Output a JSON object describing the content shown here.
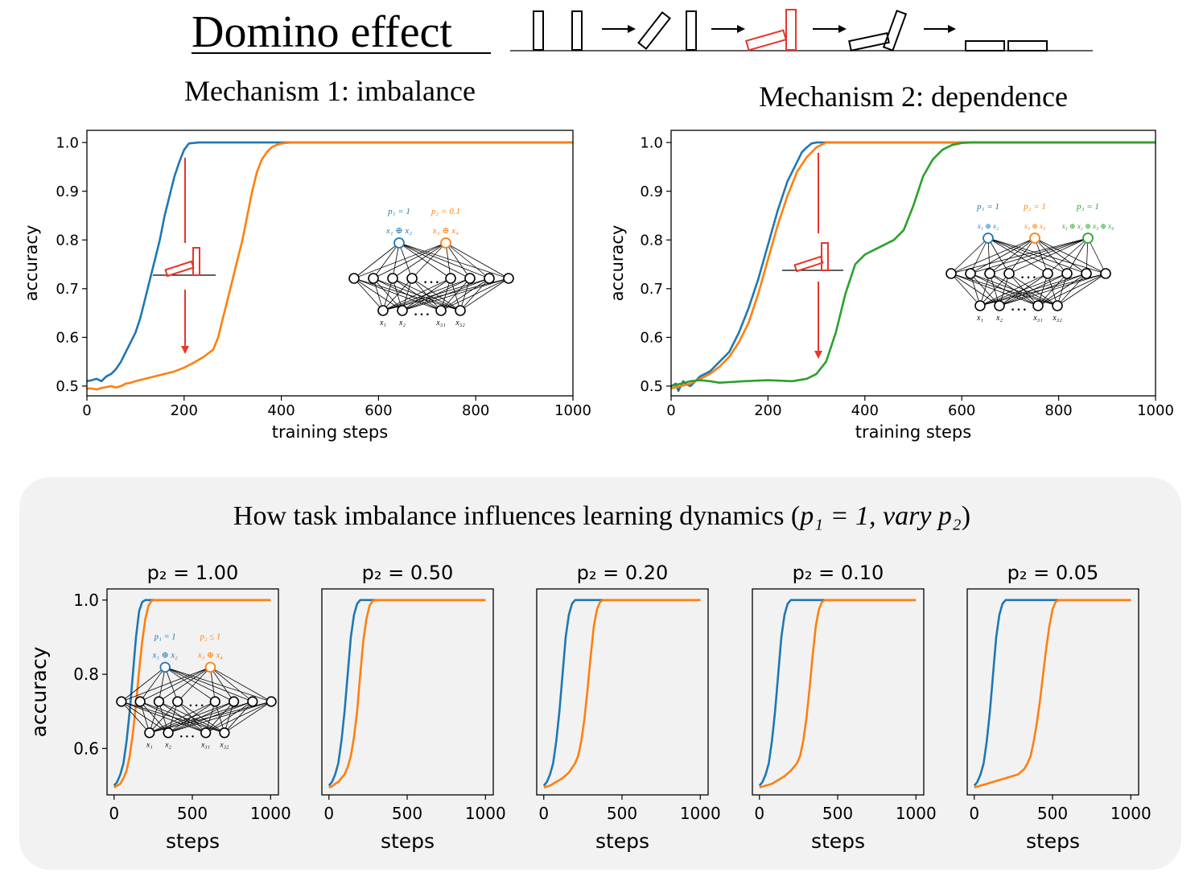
{
  "header": {
    "title": "Domino effect"
  },
  "section": {
    "title_prefix": "How task imbalance influences learning dynamics (",
    "title_math": "p₁ = 1,  vary p₂",
    "title_suffix": ")"
  },
  "colors": {
    "blue": "#1f77b4",
    "orange": "#ff7f0e",
    "green": "#2ca02c",
    "red": "#e8362a",
    "panel_bg": "#f2f2f2"
  },
  "chart_data": [
    {
      "type": "line",
      "title": "Mechanism 1: imbalance",
      "xlabel": "training steps",
      "ylabel": "accuracy",
      "xlim": [
        0,
        1000
      ],
      "ylim": [
        0.48,
        1.025
      ],
      "xticks": [
        "0",
        "200",
        "400",
        "600",
        "800",
        "1000"
      ],
      "yticks": [
        "0.5",
        "0.6",
        "0.7",
        "0.8",
        "0.9",
        "1.0"
      ],
      "series": [
        {
          "color": "#1f77b4",
          "x": [
            0,
            10,
            20,
            30,
            40,
            50,
            60,
            70,
            80,
            90,
            100,
            110,
            120,
            130,
            140,
            150,
            160,
            170,
            180,
            190,
            200,
            210,
            230,
            260,
            300,
            1000
          ],
          "y": [
            0.51,
            0.512,
            0.515,
            0.51,
            0.52,
            0.525,
            0.535,
            0.55,
            0.57,
            0.59,
            0.61,
            0.64,
            0.68,
            0.72,
            0.76,
            0.8,
            0.85,
            0.89,
            0.93,
            0.96,
            0.985,
            0.998,
            1.0,
            1.0,
            1.0,
            1.0
          ]
        },
        {
          "color": "#ff7f0e",
          "x": [
            0,
            10,
            20,
            30,
            40,
            50,
            60,
            70,
            80,
            90,
            100,
            120,
            140,
            160,
            180,
            200,
            220,
            240,
            260,
            270,
            280,
            290,
            300,
            310,
            320,
            330,
            340,
            350,
            360,
            370,
            380,
            390,
            400,
            420,
            440,
            1000
          ],
          "y": [
            0.495,
            0.495,
            0.493,
            0.496,
            0.498,
            0.5,
            0.497,
            0.5,
            0.505,
            0.507,
            0.51,
            0.515,
            0.52,
            0.525,
            0.53,
            0.538,
            0.548,
            0.56,
            0.575,
            0.6,
            0.64,
            0.68,
            0.72,
            0.76,
            0.8,
            0.85,
            0.9,
            0.94,
            0.965,
            0.98,
            0.99,
            0.995,
            0.998,
            1.0,
            1.0,
            1.0
          ]
        }
      ],
      "network": {
        "top_labels": [
          "p₁ = 1",
          "p₂ = 0.1"
        ],
        "out_labels": [
          "x₁ ⊕ x₂",
          "x₃ ⊕ x₄"
        ],
        "input_labels": [
          "x₁",
          "x₂",
          "x₃₁",
          "x₃₂"
        ]
      }
    },
    {
      "type": "line",
      "title": "Mechanism 2: dependence",
      "xlabel": "training steps",
      "ylabel": "accuracy",
      "xlim": [
        0,
        1000
      ],
      "ylim": [
        0.48,
        1.025
      ],
      "xticks": [
        "0",
        "200",
        "400",
        "600",
        "800",
        "1000"
      ],
      "yticks": [
        "0.5",
        "0.6",
        "0.7",
        "0.8",
        "0.9",
        "1.0"
      ],
      "series": [
        {
          "color": "#1f77b4",
          "x": [
            0,
            10,
            15,
            20,
            25,
            30,
            40,
            50,
            60,
            80,
            100,
            120,
            140,
            160,
            180,
            200,
            220,
            240,
            260,
            270,
            280,
            290,
            300,
            320,
            1000
          ],
          "y": [
            0.5,
            0.505,
            0.49,
            0.5,
            0.51,
            0.505,
            0.5,
            0.51,
            0.52,
            0.53,
            0.55,
            0.57,
            0.61,
            0.66,
            0.72,
            0.79,
            0.86,
            0.92,
            0.96,
            0.98,
            0.99,
            0.998,
            1.0,
            1.0,
            1.0
          ]
        },
        {
          "color": "#ff7f0e",
          "x": [
            0,
            20,
            40,
            60,
            80,
            100,
            120,
            140,
            160,
            180,
            200,
            220,
            240,
            260,
            280,
            300,
            320,
            340,
            1000
          ],
          "y": [
            0.495,
            0.5,
            0.505,
            0.515,
            0.525,
            0.54,
            0.56,
            0.59,
            0.63,
            0.69,
            0.76,
            0.83,
            0.89,
            0.94,
            0.97,
            0.99,
            1.0,
            1.0,
            1.0
          ]
        },
        {
          "color": "#2ca02c",
          "x": [
            0,
            20,
            40,
            60,
            80,
            100,
            150,
            200,
            250,
            280,
            300,
            320,
            340,
            360,
            380,
            400,
            420,
            440,
            460,
            480,
            500,
            520,
            540,
            560,
            580,
            600,
            620,
            1000
          ],
          "y": [
            0.5,
            0.505,
            0.51,
            0.512,
            0.51,
            0.507,
            0.51,
            0.512,
            0.51,
            0.515,
            0.525,
            0.55,
            0.61,
            0.69,
            0.75,
            0.77,
            0.78,
            0.79,
            0.8,
            0.82,
            0.87,
            0.93,
            0.965,
            0.985,
            0.995,
            0.999,
            1.0,
            1.0
          ]
        }
      ],
      "network": {
        "top_labels": [
          "p₁ = 1",
          "p₂ = 1",
          "p₃ = 1"
        ],
        "out_labels": [
          "x₁ ⊕ x₂",
          "x₃ ⊕ x₄",
          "x₁ ⊕ x₂ ⊕ x₃ ⊕ x₄"
        ],
        "input_labels": [
          "x₁",
          "x₂",
          "x₃₁",
          "x₃₂"
        ]
      }
    },
    {
      "type": "line",
      "title": "p₂ = 1.00",
      "xlabel": "steps",
      "ylabel": "accuracy",
      "xlim": [
        -45,
        1050
      ],
      "ylim": [
        0.475,
        1.03
      ],
      "xticks": [
        "0",
        "500",
        "1000"
      ],
      "yticks": [
        "0.6",
        "0.8",
        "1.0"
      ],
      "series": [
        {
          "color": "#1f77b4",
          "x": [
            0,
            20,
            40,
            60,
            80,
            100,
            120,
            140,
            160,
            180,
            200,
            1000
          ],
          "y": [
            0.5,
            0.51,
            0.53,
            0.56,
            0.62,
            0.7,
            0.8,
            0.9,
            0.97,
            0.995,
            1.0,
            1.0
          ]
        },
        {
          "color": "#ff7f0e",
          "x": [
            0,
            20,
            40,
            60,
            80,
            100,
            120,
            140,
            160,
            180,
            200,
            220,
            240,
            260,
            1000
          ],
          "y": [
            0.495,
            0.5,
            0.505,
            0.52,
            0.54,
            0.58,
            0.64,
            0.72,
            0.81,
            0.89,
            0.95,
            0.985,
            0.998,
            1.0,
            1.0
          ]
        }
      ],
      "network": {
        "top_labels": [
          "p₁ = 1",
          "p₂ ≤ 1"
        ],
        "out_labels": [
          "x₁ ⊕ x₂",
          "x₃ ⊕ x₄"
        ],
        "input_labels": [
          "x₁",
          "x₂",
          "x₃₁",
          "x₃₂"
        ]
      }
    },
    {
      "type": "line",
      "title": "p₂ = 0.50",
      "xlabel": "steps",
      "xlim": [
        -45,
        1050
      ],
      "ylim": [
        0.475,
        1.03
      ],
      "xticks": [
        "0",
        "500",
        "1000"
      ],
      "series": [
        {
          "color": "#1f77b4",
          "x": [
            0,
            20,
            40,
            60,
            80,
            100,
            120,
            140,
            160,
            180,
            200,
            220,
            1000
          ],
          "y": [
            0.5,
            0.51,
            0.53,
            0.56,
            0.62,
            0.7,
            0.8,
            0.9,
            0.96,
            0.99,
            1.0,
            1.0,
            1.0
          ]
        },
        {
          "color": "#ff7f0e",
          "x": [
            0,
            20,
            40,
            60,
            80,
            100,
            120,
            140,
            160,
            180,
            200,
            220,
            240,
            260,
            280,
            300,
            1000
          ],
          "y": [
            0.495,
            0.498,
            0.505,
            0.51,
            0.52,
            0.53,
            0.55,
            0.58,
            0.63,
            0.7,
            0.8,
            0.89,
            0.95,
            0.985,
            0.998,
            1.0,
            1.0
          ]
        }
      ]
    },
    {
      "type": "line",
      "title": "p₂ = 0.20",
      "xlabel": "steps",
      "xlim": [
        -45,
        1050
      ],
      "ylim": [
        0.475,
        1.03
      ],
      "xticks": [
        "0",
        "500",
        "1000"
      ],
      "series": [
        {
          "color": "#1f77b4",
          "x": [
            0,
            20,
            40,
            60,
            80,
            100,
            120,
            140,
            160,
            180,
            200,
            220,
            1000
          ],
          "y": [
            0.5,
            0.51,
            0.53,
            0.56,
            0.62,
            0.7,
            0.8,
            0.9,
            0.96,
            0.99,
            1.0,
            1.0,
            1.0
          ]
        },
        {
          "color": "#ff7f0e",
          "x": [
            0,
            40,
            80,
            120,
            160,
            200,
            220,
            240,
            260,
            280,
            300,
            320,
            340,
            360,
            380,
            400,
            1000
          ],
          "y": [
            0.495,
            0.5,
            0.51,
            0.52,
            0.535,
            0.56,
            0.58,
            0.62,
            0.68,
            0.76,
            0.85,
            0.93,
            0.975,
            0.995,
            1.0,
            1.0,
            1.0
          ]
        }
      ]
    },
    {
      "type": "line",
      "title": "p₂ = 0.10",
      "xlabel": "steps",
      "xlim": [
        -45,
        1050
      ],
      "ylim": [
        0.475,
        1.03
      ],
      "xticks": [
        "0",
        "500",
        "1000"
      ],
      "series": [
        {
          "color": "#1f77b4",
          "x": [
            0,
            20,
            40,
            60,
            80,
            100,
            120,
            140,
            160,
            180,
            200,
            220,
            1000
          ],
          "y": [
            0.5,
            0.51,
            0.53,
            0.56,
            0.62,
            0.7,
            0.8,
            0.9,
            0.96,
            0.99,
            1.0,
            1.0,
            1.0
          ]
        },
        {
          "color": "#ff7f0e",
          "x": [
            0,
            40,
            80,
            120,
            160,
            200,
            240,
            260,
            280,
            300,
            320,
            340,
            360,
            380,
            400,
            420,
            440,
            1000
          ],
          "y": [
            0.495,
            0.5,
            0.505,
            0.515,
            0.525,
            0.54,
            0.56,
            0.58,
            0.62,
            0.68,
            0.76,
            0.85,
            0.93,
            0.975,
            0.995,
            1.0,
            1.0,
            1.0
          ]
        }
      ]
    },
    {
      "type": "line",
      "title": "p₂ = 0.05",
      "xlabel": "steps",
      "xlim": [
        -45,
        1050
      ],
      "ylim": [
        0.475,
        1.03
      ],
      "xticks": [
        "0",
        "500",
        "1000"
      ],
      "series": [
        {
          "color": "#1f77b4",
          "x": [
            0,
            20,
            40,
            60,
            80,
            100,
            120,
            140,
            160,
            180,
            200,
            220,
            1000
          ],
          "y": [
            0.5,
            0.51,
            0.53,
            0.56,
            0.62,
            0.7,
            0.8,
            0.9,
            0.96,
            0.99,
            1.0,
            1.0,
            1.0
          ]
        },
        {
          "color": "#ff7f0e",
          "x": [
            0,
            40,
            80,
            120,
            160,
            200,
            240,
            280,
            320,
            340,
            360,
            380,
            400,
            420,
            440,
            460,
            480,
            500,
            520,
            540,
            1000
          ],
          "y": [
            0.495,
            0.5,
            0.505,
            0.51,
            0.515,
            0.52,
            0.525,
            0.53,
            0.545,
            0.56,
            0.58,
            0.62,
            0.67,
            0.73,
            0.8,
            0.87,
            0.93,
            0.975,
            0.995,
            1.0,
            1.0
          ]
        }
      ]
    }
  ]
}
